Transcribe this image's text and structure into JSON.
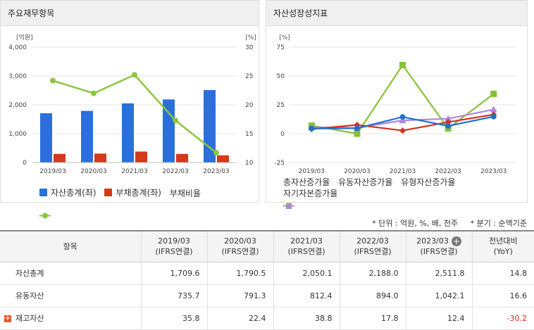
{
  "left_panel": {
    "title": "주요재무항목",
    "left_unit": "[억원]",
    "right_unit": "[%]",
    "legend": [
      "자산총계(좌)",
      "부채총계(좌)",
      "부채비율"
    ]
  },
  "right_panel": {
    "title": "자산성장성지표",
    "unit": "[%]",
    "legend": [
      "총자산증가율",
      "유동자산증가율",
      "유형자산증가율",
      "자기자본증가율"
    ]
  },
  "colors": {
    "asset_bar": "#2a6fdb",
    "liab_bar": "#d4391a",
    "ratio_line": "#8cc63f",
    "total_asset": "#1f6fd1",
    "current_asset": "#d0321e",
    "tangible_asset": "#86c232",
    "equity": "#b084e0",
    "negative": "#e0261e"
  },
  "chart_data": [
    {
      "type": "bar",
      "categories": [
        "2019/03",
        "2020/03",
        "2021/03",
        "2022/03",
        "2023/03"
      ],
      "series": [
        {
          "name": "자산총계(좌)",
          "axis": "left",
          "values": [
            1709.6,
            1790.5,
            2050.1,
            2188.0,
            2511.8
          ]
        },
        {
          "name": "부채총계(좌)",
          "axis": "left",
          "values": [
            300,
            310,
            380,
            300,
            250
          ]
        },
        {
          "name": "부채비율",
          "axis": "right",
          "kind": "line",
          "values": [
            24.2,
            22.0,
            25.2,
            17.3,
            11.7
          ]
        }
      ],
      "ylim_left": [
        0,
        4000
      ],
      "yticks_left": [
        "0",
        "1,000",
        "2,000",
        "3,000",
        "4,000"
      ],
      "ylim_right": [
        10,
        30
      ],
      "yticks_right": [
        "10",
        "15",
        "20",
        "25",
        "30"
      ],
      "grid": true,
      "legend": "bottom"
    },
    {
      "type": "line",
      "categories": [
        "2019/03",
        "2020/03",
        "2021/03",
        "2022/03",
        "2023/03"
      ],
      "series": [
        {
          "name": "총자산증가율",
          "marker": "circle",
          "values": [
            4.5,
            4.7,
            14.5,
            6.7,
            14.8
          ]
        },
        {
          "name": "유동자산증가율",
          "marker": "diamond",
          "values": [
            4.0,
            7.6,
            2.7,
            10.0,
            16.6
          ]
        },
        {
          "name": "유형자산증가율",
          "marker": "square",
          "values": [
            7.0,
            0.0,
            59.5,
            4.5,
            34.5
          ]
        },
        {
          "name": "자기자본증가율",
          "marker": "triangle",
          "values": [
            5.5,
            5.0,
            11.5,
            13.0,
            21.0
          ]
        }
      ],
      "ylim": [
        -25,
        75
      ],
      "yticks": [
        "-25",
        "0",
        "25",
        "50",
        "75"
      ],
      "grid": true,
      "legend": "bottom"
    }
  ],
  "table": {
    "meta_unit": "* 단위 : 억원, %, 배, 천주",
    "meta_period": "* 분기 : 순액기준",
    "header_item": "항목",
    "columns": [
      {
        "period": "2019/03",
        "basis": "(IFRS연결)"
      },
      {
        "period": "2020/03",
        "basis": "(IFRS연결)"
      },
      {
        "period": "2021/03",
        "basis": "(IFRS연결)"
      },
      {
        "period": "2022/03",
        "basis": "(IFRS연결)"
      },
      {
        "period": "2023/03",
        "basis": "(IFRS연결)"
      }
    ],
    "yoy_title": "전년대비",
    "yoy_sub": "(YoY)",
    "rows": [
      {
        "label": "자산총계",
        "values": [
          "1,709.6",
          "1,790.5",
          "2,050.1",
          "2,188.0",
          "2,511.8"
        ],
        "yoy": "14.8"
      },
      {
        "label": "유동자산",
        "values": [
          "735.7",
          "791.3",
          "812.4",
          "894.0",
          "1,042.1"
        ],
        "yoy": "16.6"
      },
      {
        "label": "재고자산",
        "values": [
          "35.8",
          "22.4",
          "38.8",
          "17.8",
          "12.4"
        ],
        "yoy": "-30.2"
      }
    ]
  }
}
